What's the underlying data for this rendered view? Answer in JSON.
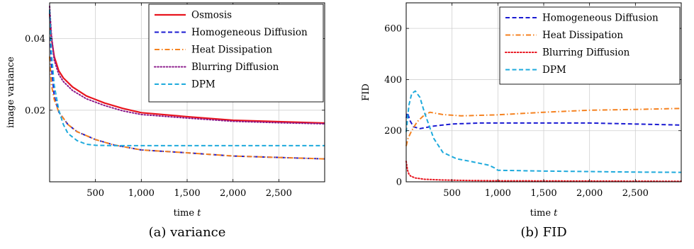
{
  "chart_data": [
    {
      "type": "line",
      "xlabel": "time t",
      "ylabel": "image variance",
      "caption": "(a) variance",
      "xlim": [
        0,
        3000
      ],
      "ylim": [
        0,
        0.05
      ],
      "xticks": [
        500,
        1000,
        1500,
        2000,
        2500
      ],
      "xtick_labels": [
        "500",
        "1,000",
        "1,500",
        "2,000",
        "2,500"
      ],
      "yticks": [
        0.02,
        0.04
      ],
      "ytick_labels": [
        "0.02",
        "0.04"
      ],
      "grid": true,
      "legend_position": "top-right",
      "series": [
        {
          "name": "Osmosis",
          "color": "#e8141e",
          "dash": "solid",
          "x": [
            0,
            20,
            50,
            100,
            150,
            250,
            400,
            600,
            800,
            1000,
            1500,
            2000,
            2500,
            3000
          ],
          "y": [
            0.047,
            0.04,
            0.035,
            0.031,
            0.029,
            0.0265,
            0.024,
            0.022,
            0.0205,
            0.0193,
            0.0182,
            0.0172,
            0.0168,
            0.0164
          ]
        },
        {
          "name": "Homogeneous Diffusion",
          "color": "#1a1ad2",
          "dash": "dashed",
          "x": [
            0,
            20,
            50,
            100,
            200,
            300,
            500,
            700,
            1000,
            1500,
            2000,
            2500,
            3000
          ],
          "y": [
            0.048,
            0.032,
            0.024,
            0.0195,
            0.016,
            0.014,
            0.0118,
            0.0103,
            0.0089,
            0.0081,
            0.0072,
            0.0068,
            0.0064
          ]
        },
        {
          "name": "Heat Dissipation",
          "color": "#f58220",
          "dash": "dashdot",
          "x": [
            0,
            20,
            50,
            100,
            200,
            300,
            500,
            700,
            1000,
            1500,
            2000,
            2500,
            3000
          ],
          "y": [
            0.035,
            0.027,
            0.023,
            0.0195,
            0.016,
            0.014,
            0.0118,
            0.0103,
            0.0089,
            0.0081,
            0.0072,
            0.0068,
            0.0064
          ]
        },
        {
          "name": "Blurring Diffusion",
          "color": "#8b1a8b",
          "dash": "dotted",
          "x": [
            0,
            20,
            50,
            100,
            150,
            250,
            400,
            600,
            800,
            1000,
            1500,
            2000,
            2500,
            3000
          ],
          "y": [
            0.049,
            0.041,
            0.034,
            0.03,
            0.028,
            0.0255,
            0.0232,
            0.0213,
            0.0198,
            0.0188,
            0.0178,
            0.0169,
            0.0165,
            0.0162
          ]
        },
        {
          "name": "DPM",
          "color": "#1eaadc",
          "dash": "dashed",
          "x": [
            0,
            20,
            50,
            100,
            150,
            200,
            300,
            400,
            500,
            700,
            1000,
            2000,
            3000
          ],
          "y": [
            0.048,
            0.036,
            0.027,
            0.02,
            0.016,
            0.0135,
            0.0115,
            0.0105,
            0.0102,
            0.0101,
            0.0101,
            0.0101,
            0.0101
          ]
        }
      ]
    },
    {
      "type": "line",
      "xlabel": "time t",
      "ylabel": "FID",
      "caption": "(b) FID",
      "xlim": [
        0,
        3000
      ],
      "ylim": [
        0,
        700
      ],
      "xticks": [
        500,
        1000,
        1500,
        2000,
        2500
      ],
      "xtick_labels": [
        "500",
        "1,000",
        "1,500",
        "2,000",
        "2,500"
      ],
      "yticks": [
        0,
        200,
        400,
        600
      ],
      "ytick_labels": [
        "0",
        "200",
        "400",
        "600"
      ],
      "grid": true,
      "legend_position": "top-right",
      "series": [
        {
          "name": "Homogeneous Diffusion",
          "color": "#1a1ad2",
          "dash": "dashed",
          "x": [
            0,
            15,
            40,
            80,
            150,
            300,
            500,
            800,
            1000,
            1500,
            2000,
            2500,
            3000
          ],
          "y": [
            250,
            270,
            240,
            215,
            208,
            218,
            226,
            230,
            230,
            230,
            230,
            226,
            222
          ]
        },
        {
          "name": "Heat Dissipation",
          "color": "#f58220",
          "dash": "dashdot",
          "x": [
            0,
            20,
            60,
            120,
            200,
            260,
            400,
            600,
            1000,
            1500,
            2000,
            2500,
            3000
          ],
          "y": [
            140,
            170,
            200,
            235,
            262,
            272,
            263,
            258,
            262,
            272,
            280,
            283,
            287
          ]
        },
        {
          "name": "Blurring Diffusion",
          "color": "#e8141e",
          "dash": "dotted",
          "x": [
            0,
            15,
            30,
            50,
            100,
            200,
            400,
            700,
            1000,
            2000,
            3000
          ],
          "y": [
            80,
            45,
            30,
            22,
            15,
            10,
            7,
            5,
            4,
            3,
            2
          ]
        },
        {
          "name": "DPM",
          "color": "#1eaadc",
          "dash": "dashed",
          "x": [
            0,
            30,
            60,
            100,
            150,
            200,
            300,
            400,
            550,
            700,
            900,
            960,
            1000,
            1500,
            2000,
            2500,
            3000
          ],
          "y": [
            195,
            300,
            345,
            355,
            330,
            270,
            170,
            115,
            90,
            80,
            65,
            55,
            45,
            42,
            40,
            38,
            37
          ]
        }
      ]
    }
  ]
}
